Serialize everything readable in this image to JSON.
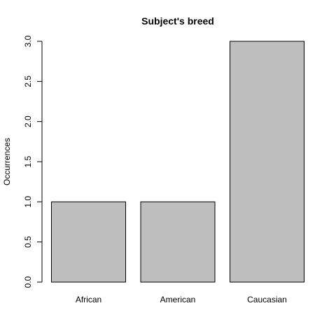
{
  "chart_data": {
    "type": "bar",
    "title": "Subject's breed",
    "xlabel": "",
    "ylabel": "Occurrences",
    "categories": [
      "African",
      "American",
      "Caucasian"
    ],
    "values": [
      1,
      1,
      3
    ],
    "ylim": [
      0,
      3
    ],
    "yticks": [
      "0.0",
      "0.5",
      "1.0",
      "1.5",
      "2.0",
      "2.5",
      "3.0"
    ],
    "grid": false,
    "legend": "none",
    "bar_fill": "#bebebe",
    "bar_stroke": "#000000"
  }
}
